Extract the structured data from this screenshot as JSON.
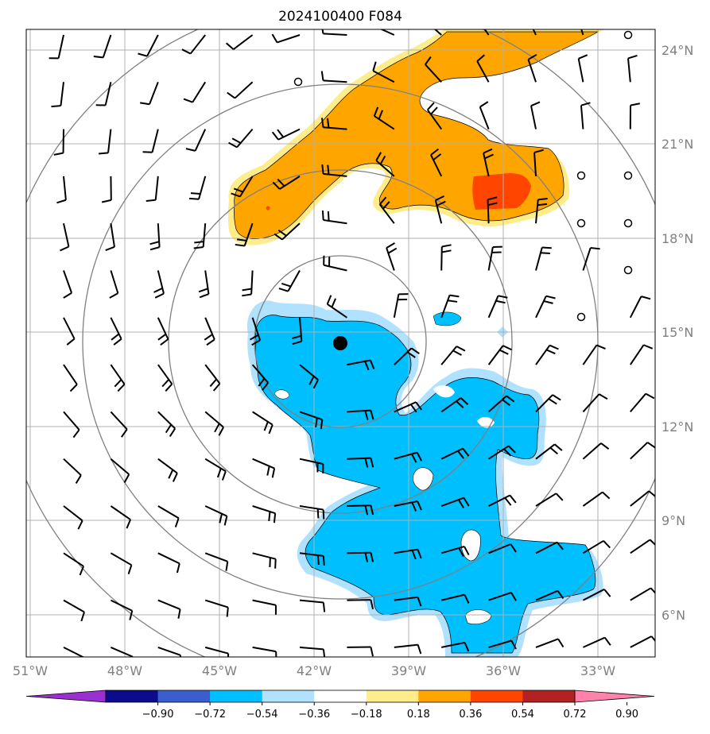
{
  "map": {
    "title": "2024100400 F084",
    "lon_labels": [
      "51°W",
      "48°W",
      "45°W",
      "42°W",
      "39°W",
      "36°W",
      "33°W"
    ],
    "lat_labels": [
      "24°N",
      "21°N",
      "18°N",
      "15°N",
      "12°N",
      "9°N",
      "6°N"
    ],
    "lon_range": [
      -51,
      -31
    ],
    "lat_range": [
      5,
      25
    ],
    "gridlines": true,
    "storm_center": {
      "lon": -41,
      "lat": 14.7
    },
    "range_rings": "concentric circles around storm center",
    "wind_barbs": "background wind barb field",
    "calm_markers": "open circles (calm winds)"
  },
  "colorbar": {
    "tick_labels": [
      "−0.90",
      "−0.72",
      "−0.54",
      "−0.36",
      "−0.18",
      "0.18",
      "0.36",
      "0.54",
      "0.72",
      "0.90"
    ],
    "levels": [
      -0.9,
      -0.72,
      -0.54,
      -0.36,
      -0.18,
      0.18,
      0.36,
      0.54,
      0.72,
      0.9
    ],
    "colors": [
      "#9b30d0",
      "#0b0b8c",
      "#3a5fcd",
      "#00bfff",
      "#b0e2ff",
      "#ffffff",
      "#ffec8b",
      "#ffa500",
      "#ff4500",
      "#b22222",
      "#ff82ab"
    ],
    "extend": "both"
  },
  "chart_data": {
    "type": "heatmap",
    "title": "2024100400 F084",
    "xlabel": "",
    "ylabel": "",
    "x_ticks": [
      -51,
      -48,
      -45,
      -42,
      -39,
      -36,
      -33
    ],
    "y_ticks": [
      6,
      9,
      12,
      15,
      18,
      21,
      24
    ],
    "features": [
      {
        "name": "positive anomaly band (0.36–0.54)",
        "color": "#ffa500",
        "region": "NW–NE band, ~17–25°N"
      },
      {
        "name": "positive anomaly core (0.54–0.72)",
        "color": "#ff4500",
        "region": "~36–37°W, 19–20°N"
      },
      {
        "name": "negative anomaly (−0.54 to −0.36)",
        "color": "#00bfff",
        "region": "~34–44°W, 5–16°N"
      }
    ]
  }
}
